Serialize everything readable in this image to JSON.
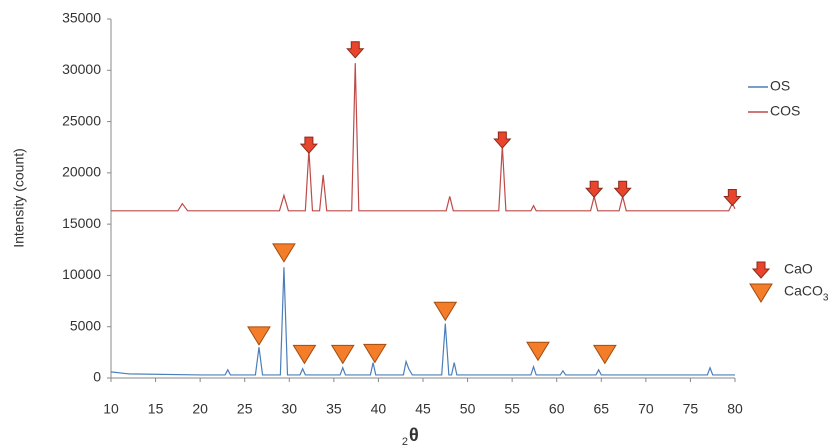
{
  "chart_data": {
    "type": "line",
    "ylabel": "Intensity (count)",
    "xlabel_sub": "2",
    "xlabel": "θ",
    "xlim": [
      10,
      80
    ],
    "xticks": [
      10,
      15,
      20,
      25,
      30,
      35,
      40,
      45,
      50,
      55,
      60,
      65,
      70,
      75,
      80
    ],
    "ylim": [
      0,
      35000
    ],
    "yticks": [
      0,
      5000,
      10000,
      15000,
      20000,
      25000,
      30000,
      35000
    ],
    "grid": false,
    "series": [
      {
        "name": "OS",
        "color": "#4a7ebb",
        "x": [
          10,
          12,
          20,
          22.8,
          23.1,
          23.4,
          26.2,
          26.6,
          27,
          29.0,
          29.4,
          29.8,
          31.2,
          31.5,
          31.8,
          35.7,
          36,
          36.3,
          39.1,
          39.4,
          39.7,
          42.8,
          43.1,
          43.4,
          43.8,
          47.1,
          47.5,
          47.9,
          48.2,
          48.5,
          48.8,
          57.1,
          57.4,
          57.7,
          60.4,
          60.7,
          61,
          64.4,
          64.7,
          65,
          76.9,
          77.2,
          77.5,
          80
        ],
        "values": [
          600,
          400,
          300,
          300,
          800,
          300,
          300,
          3000,
          300,
          300,
          10800,
          300,
          300,
          900,
          300,
          300,
          1000,
          300,
          300,
          1500,
          300,
          300,
          1600,
          900,
          300,
          300,
          5300,
          300,
          300,
          1500,
          300,
          300,
          1100,
          300,
          300,
          700,
          300,
          300,
          800,
          300,
          300,
          1000,
          300,
          300
        ]
      },
      {
        "name": "COS",
        "color": "#be4b48",
        "x": [
          10,
          17.5,
          18,
          18.6,
          28.9,
          29.4,
          29.9,
          31.8,
          32.2,
          32.6,
          33.4,
          33.8,
          34.2,
          37.0,
          37.4,
          37.8,
          47.6,
          48.0,
          48.4,
          53.5,
          53.9,
          54.3,
          57.1,
          57.4,
          57.7,
          63.8,
          64.2,
          64.6,
          67.0,
          67.4,
          67.8,
          79.3,
          79.7,
          80
        ],
        "values": [
          16300,
          16300,
          17000,
          16300,
          16300,
          17800,
          16300,
          16300,
          22200,
          16300,
          16300,
          19800,
          16300,
          16300,
          30700,
          16300,
          16300,
          17700,
          16300,
          16300,
          22600,
          16300,
          16300,
          16800,
          16300,
          16300,
          17700,
          16300,
          16300,
          17700,
          16300,
          16300,
          17000,
          16500
        ]
      }
    ],
    "markers": [
      {
        "name": "CaO",
        "shape": "arrow",
        "color": "#e8452c",
        "points": [
          {
            "x": 32.2,
            "y": 22700
          },
          {
            "x": 37.4,
            "y": 32000
          },
          {
            "x": 53.9,
            "y": 23200
          },
          {
            "x": 64.2,
            "y": 18400
          },
          {
            "x": 67.4,
            "y": 18400
          },
          {
            "x": 79.7,
            "y": 17600
          }
        ]
      },
      {
        "name": "CaCO",
        "name_subscript": "3",
        "shape": "triangle",
        "color": "#f47d2a",
        "points": [
          {
            "x": 26.6,
            "y": 4200
          },
          {
            "x": 29.4,
            "y": 12300
          },
          {
            "x": 31.7,
            "y": 2400
          },
          {
            "x": 36,
            "y": 2400
          },
          {
            "x": 39.6,
            "y": 2500
          },
          {
            "x": 47.5,
            "y": 6600
          },
          {
            "x": 57.9,
            "y": 2700
          },
          {
            "x": 65.4,
            "y": 2400
          }
        ]
      }
    ]
  }
}
